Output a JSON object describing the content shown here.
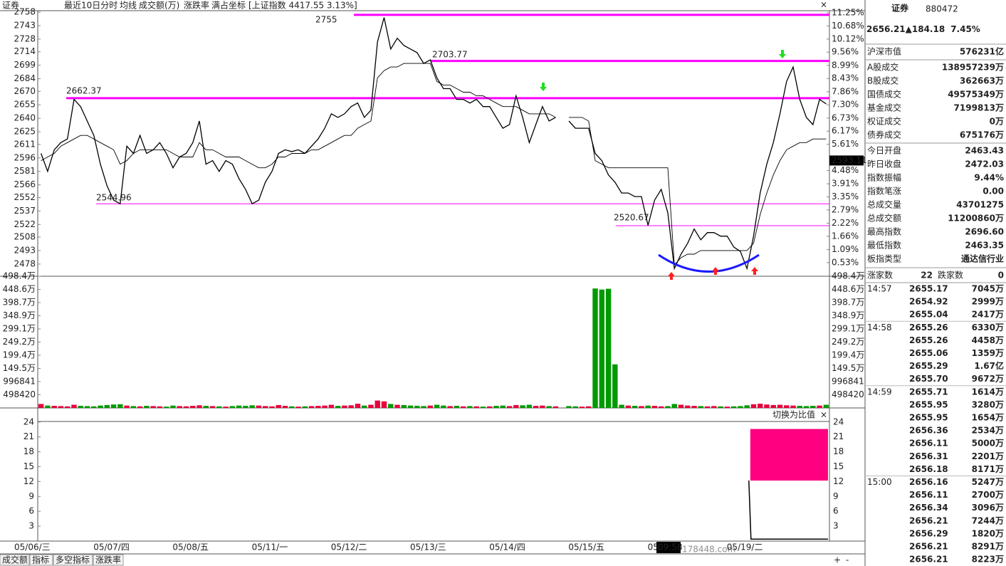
{
  "toolbar": {
    "items": [
      "证券",
      "最近10日分时",
      "均线",
      "成交额(万)",
      "涨跌率",
      "满占坐标"
    ],
    "index": "[上证指数 4417.55 3.13%]",
    "close": "×"
  },
  "chart_data": [
    {
      "type": "line",
      "x_labels": [
        "05/06/三",
        "05/07/四",
        "05/08/五",
        "05/11/一",
        "05/12/二",
        "05/13/三",
        "05/14/四",
        "05/15/五",
        "05",
        "05/19/二"
      ],
      "series": [
        {
          "color": "#000000",
          "values": [
            2601,
            2581,
            2605,
            2613,
            2617,
            2661,
            2653,
            2637,
            2621,
            2589,
            2565,
            2549,
            2545,
            2609,
            2601,
            2621,
            2601,
            2605,
            2613,
            2601,
            2585,
            2597,
            2601,
            2613,
            2637,
            2589,
            2593,
            2581,
            2593,
            2589,
            2573,
            2561,
            2545,
            2549,
            2569,
            2581,
            2601,
            2605,
            2603,
            2605,
            2601,
            2609,
            2617,
            2629,
            2645,
            2641,
            2645,
            2653,
            2657,
            2641,
            2649,
            2725,
            2752,
            2717,
            2729,
            2721,
            2717,
            2713,
            2701,
            2705,
            2685,
            2673,
            2673,
            2661,
            2661,
            2657,
            2661,
            2653,
            2653,
            2641,
            2629,
            2633,
            2665,
            2641,
            2613,
            2633,
            2653,
            2637,
            2641,
            null,
            2637,
            2629,
            2629,
            2629,
            2601,
            2593,
            2577,
            2569,
            2557,
            2557,
            2553,
            2553,
            2521,
            2549,
            2561,
            2535,
            2473,
            2489,
            2501,
            2517,
            2505,
            2513,
            2513,
            2509,
            2509,
            2497,
            2492,
            2473,
            2509,
            2557,
            2589,
            2613,
            2645,
            2681,
            2697,
            2661,
            2641,
            2633,
            2661,
            2656
          ]
        },
        {
          "color": "#000000",
          "values": [
            2593,
            2597,
            2601,
            2609,
            2613,
            2617,
            2621,
            2621,
            2617,
            2613,
            2609,
            2605,
            2589,
            2593,
            2601,
            2605,
            2605,
            2605,
            2605,
            2605,
            2601,
            2597,
            2597,
            2597,
            2613,
            2605,
            2605,
            2601,
            2597,
            2597,
            2597,
            2593,
            2589,
            2585,
            2585,
            2589,
            2597,
            2597,
            2601,
            2601,
            2601,
            2605,
            2605,
            2609,
            2613,
            2617,
            2621,
            2621,
            2629,
            2633,
            2637,
            2685,
            2693,
            2697,
            2697,
            2701,
            2701,
            2701,
            2701,
            2701,
            2681,
            2677,
            2677,
            2673,
            2669,
            2669,
            2665,
            2665,
            2661,
            2657,
            2653,
            2653,
            2653,
            2649,
            2645,
            2645,
            2645,
            2645,
            2641,
            null,
            2641,
            2641,
            2641,
            2637,
            2593,
            2589,
            2585,
            2585,
            2585,
            2585,
            2585,
            2585,
            2585,
            2585,
            2585,
            2585,
            2477,
            2485,
            2489,
            2489,
            2493,
            2493,
            2493,
            2493,
            2493,
            2493,
            2493,
            2493,
            2501,
            2533,
            2557,
            2577,
            2593,
            2605,
            2609,
            2613,
            2613,
            2617,
            2617,
            2617
          ]
        }
      ],
      "ylim": [
        2470,
        2762
      ],
      "yticks": [
        2758,
        2743,
        2728,
        2714,
        2699,
        2684,
        2670,
        2655,
        2640,
        2625,
        2611,
        2596,
        2581,
        2566,
        2552,
        2537,
        2522,
        2508,
        2493,
        2478
      ],
      "y2lim": [
        0.16,
        11.43
      ],
      "y2ticks": [
        {
          "value": 11.25,
          "label": "11.25%"
        },
        {
          "value": 10.68,
          "label": "10.68%"
        },
        {
          "value": 10.12,
          "label": "10.12%"
        },
        {
          "value": 9.56,
          "label": "9.56%"
        },
        {
          "value": 8.99,
          "label": "8.99%"
        },
        {
          "value": 8.43,
          "label": "8.43%"
        },
        {
          "value": 7.86,
          "label": "7.86%"
        },
        {
          "value": 7.3,
          "label": "7.30%"
        },
        {
          "value": 6.73,
          "label": "6.73%"
        },
        {
          "value": 6.17,
          "label": "6.17%"
        },
        {
          "value": 5.61,
          "label": "5.61%"
        },
        {
          "value": 4.48,
          "label": "4.48%"
        },
        {
          "value": 3.91,
          "label": "3.91%"
        },
        {
          "value": 3.35,
          "label": "3.35%"
        },
        {
          "value": 2.79,
          "label": "2.79%"
        },
        {
          "value": 2.22,
          "label": "2.22%"
        },
        {
          "value": 1.66,
          "label": "1.66%"
        },
        {
          "value": 1.09,
          "label": "1.09%"
        },
        {
          "value": 0.53,
          "label": "0.53%"
        }
      ],
      "thick_levels": [
        2755,
        2703.77,
        2662.37
      ],
      "thin_levels": [
        2544.96,
        2520.67
      ],
      "level_color": "#ff00ff",
      "cursor_value": 2593.11,
      "cursor_time": "09:58"
    },
    {
      "type": "bar",
      "values": [
        150000,
        90000,
        80000,
        70000,
        60000,
        120000,
        80000,
        70000,
        60000,
        90000,
        110000,
        130000,
        140000,
        90000,
        70000,
        60000,
        80000,
        70000,
        60000,
        50000,
        90000,
        70000,
        60000,
        80000,
        100000,
        80000,
        70000,
        60000,
        50000,
        70000,
        90000,
        80000,
        100000,
        90000,
        70000,
        60000,
        110000,
        80000,
        60000,
        50000,
        60000,
        70000,
        80000,
        90000,
        120000,
        80000,
        90000,
        100000,
        160000,
        90000,
        120000,
        280000,
        250000,
        150000,
        120000,
        110000,
        90000,
        80000,
        70000,
        90000,
        120000,
        90000,
        70000,
        80000,
        60000,
        70000,
        60000,
        50000,
        60000,
        80000,
        90000,
        70000,
        110000,
        100000,
        120000,
        80000,
        90000,
        70000,
        60000,
        null,
        70000,
        60000,
        50000,
        60000,
        4520000,
        4480000,
        4510000,
        1650000,
        120000,
        90000,
        80000,
        70000,
        90000,
        80000,
        60000,
        70000,
        150000,
        120000,
        90000,
        80000,
        70000,
        60000,
        70000,
        60000,
        50000,
        60000,
        70000,
        100000,
        140000,
        160000,
        130000,
        110000,
        120000,
        100000,
        90000,
        80000,
        70000,
        80000,
        90000,
        120000
      ],
      "up_color": "#e8003c",
      "down_color": "#009a00",
      "ylim": [
        0,
        4984000
      ],
      "yticks": [
        {
          "value": 4984000,
          "label": "498.4万"
        },
        {
          "value": 4486000,
          "label": "448.6万"
        },
        {
          "value": 3987000,
          "label": "398.7万"
        },
        {
          "value": 3489000,
          "label": "348.9万"
        },
        {
          "value": 2991000,
          "label": "299.1万"
        },
        {
          "value": 2492000,
          "label": "249.2万"
        },
        {
          "value": 1994000,
          "label": "199.4万"
        },
        {
          "value": 1495000,
          "label": "149.5万"
        },
        996841,
        498420
      ]
    },
    {
      "type": "range",
      "header": "切换为比值",
      "close": "×",
      "band": [
        12.2,
        22.6
      ],
      "band_color": "#ff0080",
      "line": [
        12.2,
        0.4,
        0.4
      ],
      "ylim": [
        0,
        24.4
      ],
      "yticks": [
        24,
        21,
        18,
        15,
        12,
        9,
        6,
        3
      ]
    }
  ],
  "tabs": [
    "成交额",
    "指标",
    "多空指标",
    "涨跌率"
  ],
  "controls": [
    "+",
    "-"
  ],
  "watermark": "178448.com",
  "panel": {
    "title": "证券",
    "code": "880472",
    "price": "2656.21",
    "change": "▲184.18",
    "pct": "7.45%",
    "stats": [
      {
        "label": "沪深市值",
        "value": "576231亿"
      },
      {
        "label": "A股成交",
        "value": "138957239万"
      },
      {
        "label": "B股成交",
        "value": "362663万"
      },
      {
        "label": "国债成交",
        "value": "49575349万"
      },
      {
        "label": "基金成交",
        "value": "7199813万"
      },
      {
        "label": "权证成交",
        "value": "0万"
      },
      {
        "label": "债券成交",
        "value": "675176万"
      },
      {
        "label": "今日开盘",
        "value": "2463.43",
        "color": "#008c00"
      },
      {
        "label": "昨日收盘",
        "value": "2472.03"
      },
      {
        "label": "指数振幅",
        "value": "9.44%"
      },
      {
        "label": "指数笔涨",
        "value": "0.00"
      },
      {
        "label": "总成交量",
        "value": "43701275"
      },
      {
        "label": "总成交额",
        "value": "11200860万"
      },
      {
        "label": "最高指数",
        "value": "2696.60",
        "color": "#d0003c"
      },
      {
        "label": "最低指数",
        "value": "2463.35",
        "color": "#008c00"
      },
      {
        "label": "板指类型",
        "value": "通达信行业"
      }
    ],
    "up_label": "涨家数",
    "up": "22",
    "down_label": "跌家数",
    "down": "0",
    "ticks": [
      {
        "time": "14:57",
        "rows": [
          [
            "2655.17",
            "7045万"
          ],
          [
            "2654.92",
            "2999万"
          ],
          [
            "2655.04",
            "2417万"
          ]
        ]
      },
      {
        "time": "14:58",
        "rows": [
          [
            "2655.26",
            "6330万"
          ],
          [
            "2655.26",
            "4458万"
          ],
          [
            "2655.06",
            "1359万"
          ],
          [
            "2655.29",
            "1.67亿"
          ],
          [
            "2655.70",
            "9672万"
          ]
        ]
      },
      {
        "time": "14:59",
        "rows": [
          [
            "2655.71",
            "1614万"
          ],
          [
            "2655.95",
            "3280万"
          ],
          [
            "2655.95",
            "1654万"
          ],
          [
            "2656.36",
            "2534万"
          ],
          [
            "2656.11",
            "5000万"
          ],
          [
            "2656.31",
            "2201万"
          ],
          [
            "2656.18",
            "8171万"
          ]
        ]
      },
      {
        "time": "15:00",
        "rows": [
          [
            "2656.16",
            "5247万"
          ],
          [
            "2656.11",
            "2700万"
          ],
          [
            "2656.34",
            "3096万"
          ],
          [
            "2656.21",
            "7244万"
          ],
          [
            "2656.29",
            "1820万"
          ],
          [
            "2656.21",
            "8291万"
          ],
          [
            "2656.21",
            "8223万"
          ]
        ]
      }
    ]
  }
}
